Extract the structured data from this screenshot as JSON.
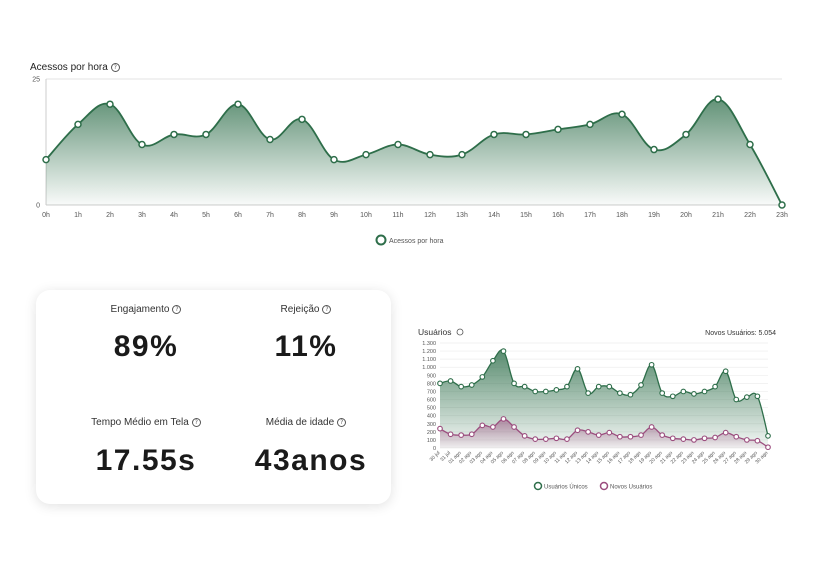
{
  "chart1": {
    "title": "Acessos por hora",
    "legend": "Acessos por hora",
    "colors": {
      "line": "#2e6e4a",
      "fill": "#2e6e4a",
      "grid": "#cccccc"
    }
  },
  "stats": {
    "engagement_label": "Engajamento",
    "engagement_value": "89%",
    "rejection_label": "Rejeição",
    "rejection_value": "11%",
    "time_label": "Tempo Médio em Tela",
    "time_value": "17.55s",
    "age_label": "Média de idade",
    "age_value": "43anos"
  },
  "chart2": {
    "title": "Usuários",
    "new_users_caption": "Novos Usuários: 5.054",
    "colors": {
      "unique": "#2e6e4a",
      "new": "#9b4d7e"
    }
  },
  "chart_data": [
    {
      "type": "area",
      "title": "Acessos por hora",
      "categories": [
        "0h",
        "1h",
        "2h",
        "3h",
        "4h",
        "5h",
        "6h",
        "7h",
        "8h",
        "9h",
        "10h",
        "11h",
        "12h",
        "13h",
        "14h",
        "15h",
        "16h",
        "17h",
        "18h",
        "19h",
        "20h",
        "21h",
        "22h",
        "23h"
      ],
      "series": [
        {
          "name": "Acessos por hora",
          "values": [
            9,
            16,
            20,
            12,
            14,
            14,
            20,
            13,
            17,
            9,
            10,
            12,
            10,
            10,
            14,
            14,
            15,
            16,
            18,
            11,
            14,
            21,
            12,
            0
          ]
        }
      ],
      "yticks": [
        0,
        25
      ],
      "ylim": [
        0,
        25
      ],
      "legend": "bottom"
    },
    {
      "type": "area",
      "title": "Usuários",
      "categories": [
        "30 jul",
        "31 jul",
        "01 ago",
        "02 ago",
        "03 ago",
        "04 ago",
        "05 ago",
        "06 ago",
        "07 ago",
        "08 ago",
        "09 ago",
        "10 ago",
        "11 ago",
        "12 ago",
        "13 ago",
        "14 ago",
        "15 ago",
        "16 ago",
        "17 ago",
        "18 ago",
        "19 ago",
        "20 ago",
        "21 ago",
        "22 ago",
        "23 ago",
        "24 ago",
        "25 ago",
        "26 ago",
        "27 ago",
        "28 ago",
        "29 ago",
        "30 ago"
      ],
      "series": [
        {
          "name": "Usuários Únicos",
          "values": [
            800,
            830,
            760,
            780,
            880,
            1080,
            1200,
            800,
            760,
            700,
            700,
            720,
            760,
            980,
            680,
            760,
            760,
            680,
            660,
            780,
            1030,
            680,
            640,
            700,
            670,
            700,
            760,
            950,
            600,
            630,
            640,
            150
          ]
        },
        {
          "name": "Novos Usuários",
          "values": [
            240,
            170,
            160,
            170,
            280,
            260,
            360,
            260,
            150,
            110,
            110,
            120,
            110,
            220,
            200,
            160,
            190,
            140,
            140,
            160,
            260,
            160,
            120,
            110,
            100,
            120,
            130,
            190,
            140,
            100,
            90,
            10
          ]
        }
      ],
      "yticks": [
        0,
        100,
        200,
        300,
        400,
        500,
        600,
        700,
        800,
        900,
        1000,
        1100,
        1200,
        1300
      ],
      "ytick_labels": [
        "0",
        "100",
        "200",
        "300",
        "400",
        "500",
        "600",
        "700",
        "800",
        "900",
        "1.000",
        "1.100",
        "1.200",
        "1.300"
      ],
      "ylim": [
        0,
        1300
      ],
      "legend": "bottom"
    }
  ]
}
